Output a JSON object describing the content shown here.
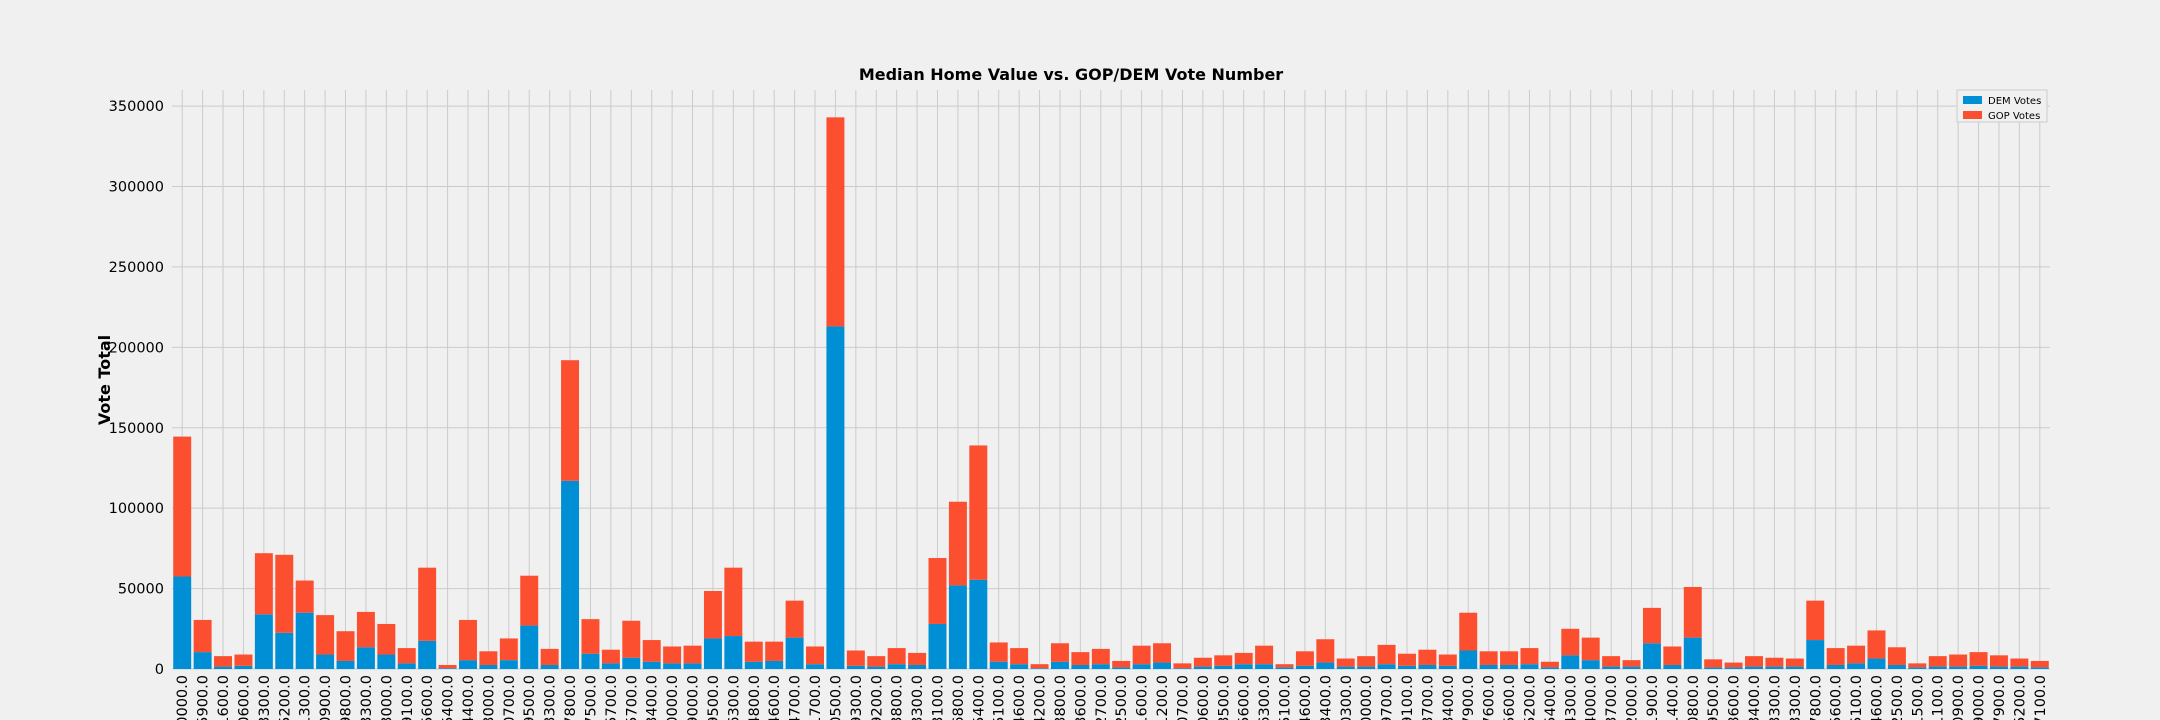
{
  "chart_data": {
    "type": "bar",
    "stacked": true,
    "title": "Median Home Value vs. GOP/DEM Vote Number",
    "ylabel": "Vote Total",
    "xlabel": "",
    "ylim": [
      0,
      360000
    ],
    "yticks": [
      0,
      50000,
      100000,
      150000,
      200000,
      250000,
      300000,
      350000
    ],
    "grid": true,
    "legend_position": "top-right",
    "categories": [
      "0000.0",
      "5900.0",
      "1600.0",
      "0600.0",
      "3300.0",
      "5200.0",
      "1300.0",
      "0900.0",
      "9800.0",
      "3300.0",
      "3000.0",
      "9100.0",
      "5600.0",
      "5400.0",
      "4400.0",
      "3000.0",
      "0700.0",
      "9500.0",
      "3300.0",
      "7800.0",
      "7500.0",
      "5700.0",
      "5700.0",
      "3400.0",
      "0000.0",
      "9000.0",
      "9500.0",
      "6300.0",
      "4800.0",
      "4600.0",
      "4700.0",
      "1700.0",
      "0500.0",
      "9300.0",
      "9200.0",
      "3800.0",
      "3300.0",
      "3100.0",
      "6800.0",
      "5400.0",
      "5100.0",
      "4600.0",
      "4200.0",
      "3800.0",
      "3600.0",
      "2700.0",
      "2500.0",
      "1600.0",
      "1200.0",
      "0700.0",
      "0600.0",
      "3500.0",
      "5600.0",
      "6300.0",
      "5100.0",
      "4600.0",
      "3400.0",
      "0300.0",
      "0000.0",
      "9700.0",
      "9100.0",
      "3700.0",
      "3400.0",
      "7900.0",
      "7600.0",
      "5600.0",
      "5200.0",
      "5400.0",
      "4300.0",
      "4000.0",
      "3700.0",
      "2000.0",
      "1900.0",
      "1400.0",
      "0800.0",
      "9500.0",
      "8600.0",
      "3400.0",
      "3300.0",
      "3300.0",
      "7800.0",
      "5600.0",
      "5100.0",
      "4600.0",
      "2500.0",
      "1500.0",
      "1100.0",
      "0900.0",
      "9000.0",
      "7900.0",
      "5200.0",
      "7100.0"
    ],
    "series": [
      {
        "name": "DEM Votes",
        "color": "#008fd5",
        "values": [
          57500,
          10500,
          1500,
          2000,
          34000,
          22500,
          35000,
          9000,
          5000,
          13500,
          9000,
          3500,
          17500,
          500,
          5500,
          2500,
          5500,
          27000,
          2500,
          117000,
          9500,
          3500,
          7000,
          4500,
          3500,
          3500,
          19000,
          20500,
          4500,
          5000,
          19500,
          3000,
          213000,
          2000,
          1500,
          3000,
          2500,
          28000,
          52000,
          55500,
          4500,
          3000,
          500,
          4500,
          2500,
          3000,
          1000,
          3000,
          4000,
          500,
          1500,
          2000,
          3000,
          3000,
          1000,
          2000,
          4000,
          1500,
          1500,
          3000,
          2000,
          2500,
          2000,
          11500,
          2500,
          2500,
          3000,
          1000,
          8500,
          5500,
          1500,
          1500,
          16000,
          2500,
          19500,
          1000,
          1000,
          1500,
          1500,
          1500,
          18000,
          2500,
          3500,
          6500,
          2500,
          1000,
          1500,
          1500,
          2000,
          1500,
          1500,
          1000
        ]
      },
      {
        "name": "GOP Votes",
        "color": "#fc4f30",
        "values": [
          87000,
          20000,
          6500,
          7000,
          38000,
          48500,
          20000,
          24500,
          18500,
          22000,
          19000,
          9500,
          45500,
          2000,
          25000,
          8500,
          13500,
          31000,
          10000,
          75000,
          21500,
          8500,
          23000,
          13500,
          10500,
          11000,
          29500,
          42500,
          12500,
          12000,
          23000,
          11000,
          130000,
          9500,
          6500,
          10000,
          7500,
          41000,
          52000,
          83500,
          12000,
          10000,
          2500,
          11500,
          8000,
          9500,
          4000,
          11500,
          12000,
          3000,
          5500,
          6500,
          7000,
          11500,
          2000,
          9000,
          14500,
          5000,
          6500,
          12000,
          7500,
          9500,
          7000,
          23500,
          8500,
          8500,
          10000,
          3500,
          16500,
          14000,
          6500,
          4000,
          22000,
          11500,
          31500,
          5000,
          3000,
          6500,
          5500,
          5000,
          24500,
          10500,
          11000,
          17500,
          11000,
          2500,
          6500,
          7500,
          8500,
          7000,
          5000,
          4000
        ]
      }
    ]
  }
}
